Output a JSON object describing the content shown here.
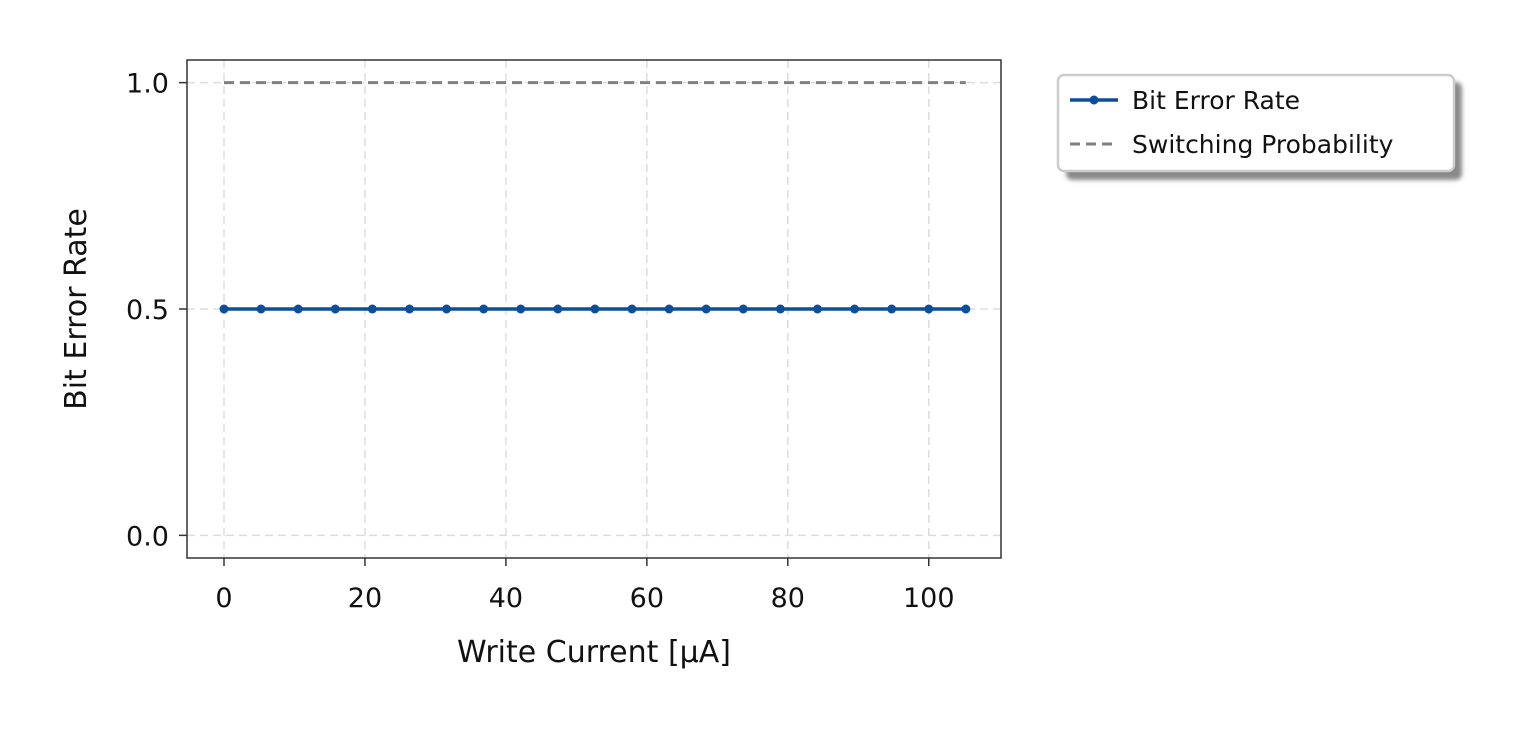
{
  "chart_data": {
    "type": "line",
    "title": "",
    "xlabel": "Write Current [μA]",
    "ylabel": "Bit Error Rate",
    "xlim": [
      -5.25,
      110.25
    ],
    "ylim": [
      -0.05,
      1.05
    ],
    "xticks": [
      0,
      20,
      40,
      60,
      80,
      100
    ],
    "xtick_labels": [
      "0",
      "20",
      "40",
      "60",
      "80",
      "100"
    ],
    "yticks": [
      0.0,
      0.5,
      1.0
    ],
    "ytick_labels": [
      "0.0",
      "0.5",
      "1.0"
    ],
    "grid": true,
    "legend_position": "outside-top-right",
    "series": [
      {
        "name": "Bit Error Rate",
        "style": "solid-with-markers",
        "color": "#0b4f9c",
        "x": [
          0,
          5.26,
          10.53,
          15.79,
          21.05,
          26.32,
          31.58,
          36.84,
          42.11,
          47.37,
          52.63,
          57.89,
          63.16,
          68.42,
          73.68,
          78.95,
          84.21,
          89.47,
          94.74,
          100,
          105.26
        ],
        "y": [
          0.5,
          0.5,
          0.5,
          0.5,
          0.5,
          0.5,
          0.5,
          0.5,
          0.5,
          0.5,
          0.5,
          0.5,
          0.5,
          0.5,
          0.5,
          0.5,
          0.5,
          0.5,
          0.5,
          0.5,
          0.5
        ]
      },
      {
        "name": "Switching Probability",
        "style": "dashed",
        "color": "#808080",
        "x": [
          0,
          5.26,
          10.53,
          15.79,
          21.05,
          26.32,
          31.58,
          36.84,
          42.11,
          47.37,
          52.63,
          57.89,
          63.16,
          68.42,
          73.68,
          78.95,
          84.21,
          89.47,
          94.74,
          100,
          105.26
        ],
        "y": [
          1.0,
          1.0,
          1.0,
          1.0,
          1.0,
          1.0,
          1.0,
          1.0,
          1.0,
          1.0,
          1.0,
          1.0,
          1.0,
          1.0,
          1.0,
          1.0,
          1.0,
          1.0,
          1.0,
          1.0,
          1.0
        ]
      }
    ]
  }
}
